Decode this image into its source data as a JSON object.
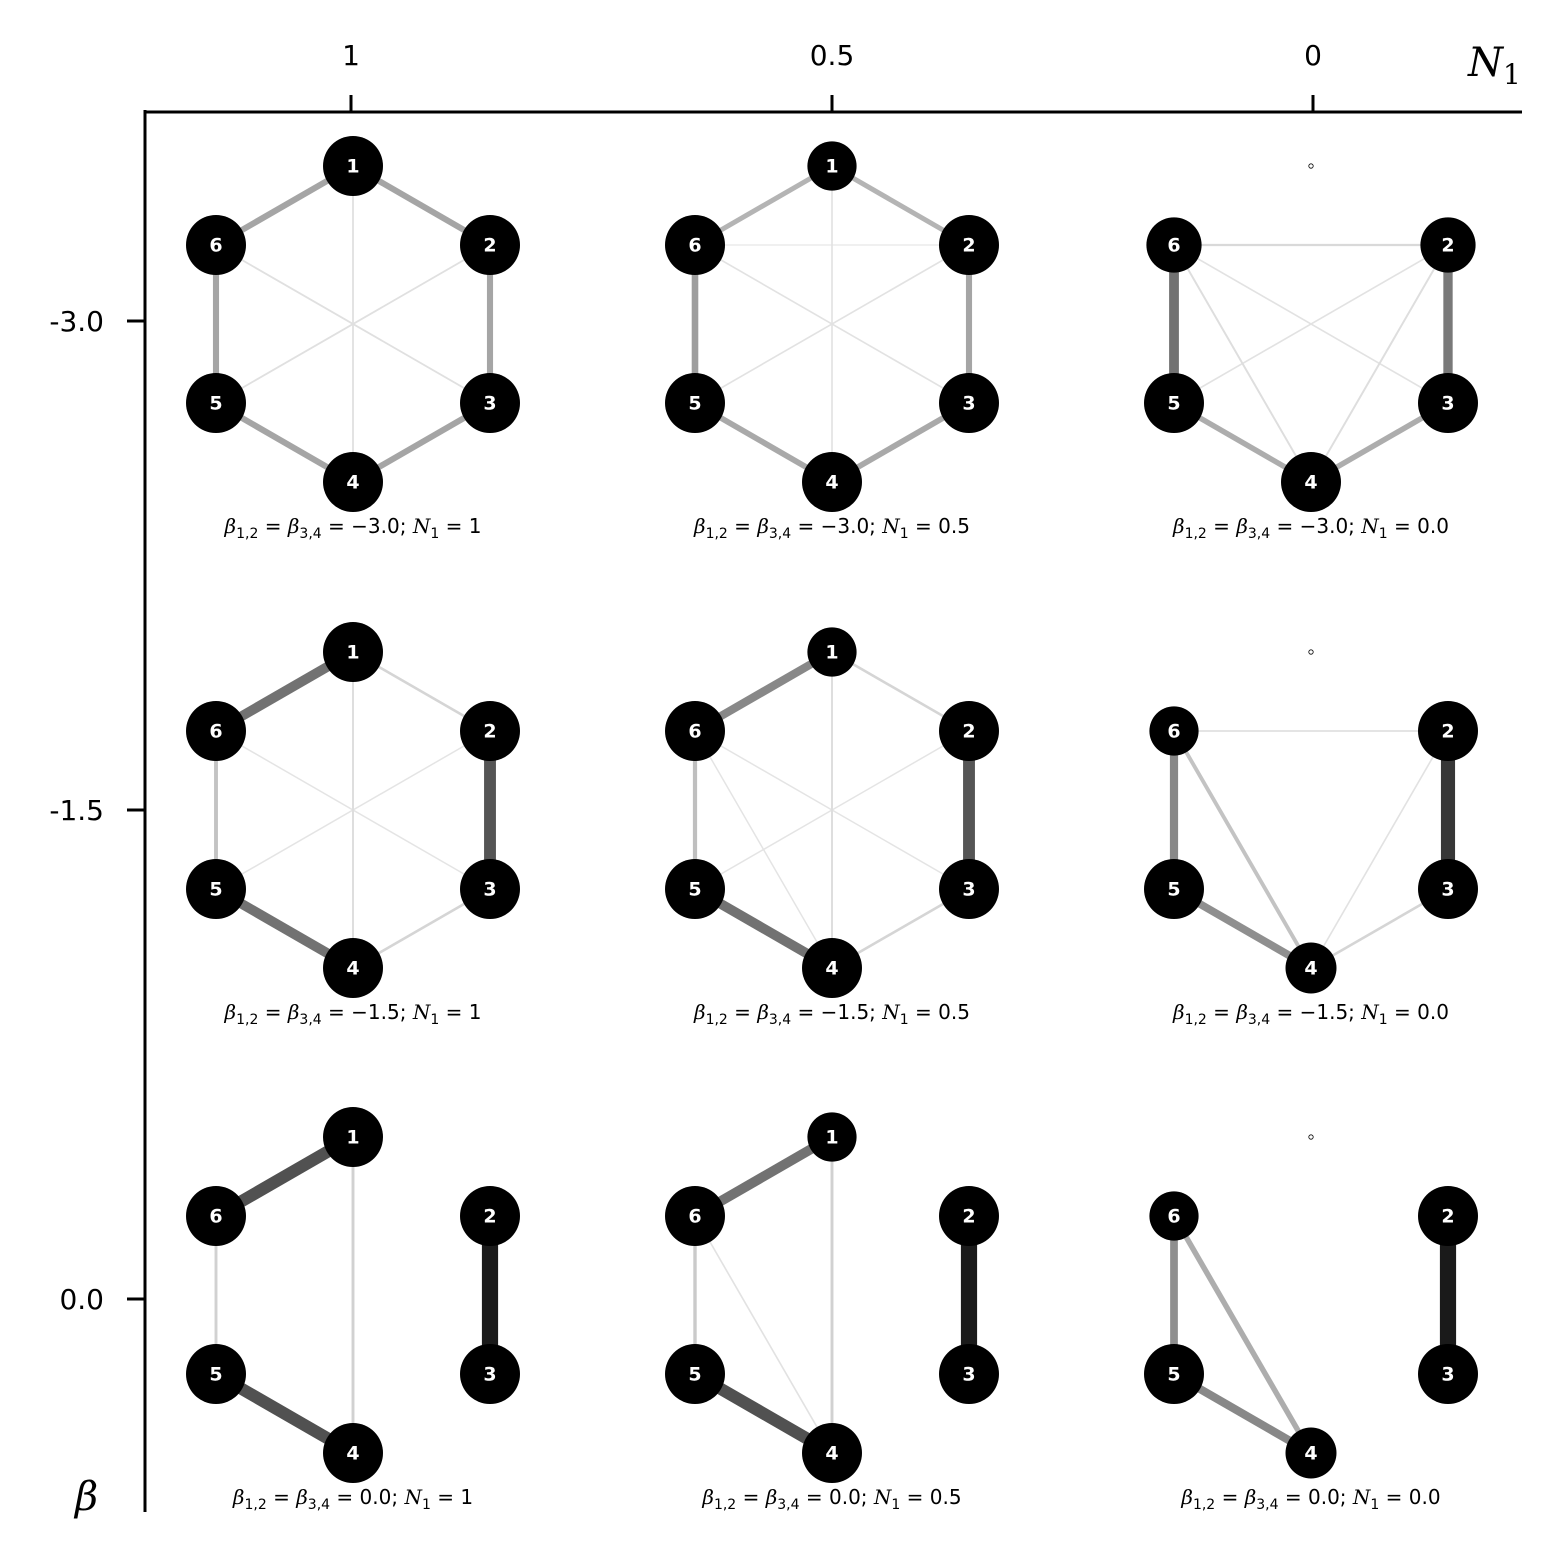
{
  "axes": {
    "x_name": "N",
    "x_name_sub": "1",
    "y_name": "β",
    "x_ticks": [
      "1",
      "0.5",
      "0"
    ],
    "y_ticks": [
      "-3.0",
      "-1.5",
      "0.0"
    ]
  },
  "node_labels": [
    "1",
    "2",
    "3",
    "4",
    "5",
    "6"
  ],
  "panels": [
    {
      "caption": "β1,2 = β3,4 = −3.0; N1 = 1",
      "cap_beta": "−3.0",
      "cap_n": "1",
      "hide_node1": false,
      "sizes": [
        1.0,
        1.0,
        1.0,
        1.0,
        1.0,
        1.0
      ],
      "edges": [
        {
          "a": 1,
          "b": 2,
          "w": 0.32
        },
        {
          "a": 2,
          "b": 3,
          "w": 0.32
        },
        {
          "a": 3,
          "b": 4,
          "w": 0.32
        },
        {
          "a": 4,
          "b": 5,
          "w": 0.32
        },
        {
          "a": 5,
          "b": 6,
          "w": 0.32
        },
        {
          "a": 6,
          "b": 1,
          "w": 0.32
        },
        {
          "a": 1,
          "b": 4,
          "w": 0.05
        },
        {
          "a": 2,
          "b": 5,
          "w": 0.05
        },
        {
          "a": 3,
          "b": 6,
          "w": 0.05
        }
      ]
    },
    {
      "caption": "β1,2 = β3,4 = −3.0; N1 = 0.5",
      "cap_beta": "−3.0",
      "cap_n": "0.5",
      "hide_node1": false,
      "sizes": [
        0.82,
        1.0,
        1.0,
        1.0,
        1.0,
        1.0
      ],
      "edges": [
        {
          "a": 1,
          "b": 2,
          "w": 0.25
        },
        {
          "a": 6,
          "b": 1,
          "w": 0.25
        },
        {
          "a": 2,
          "b": 3,
          "w": 0.32
        },
        {
          "a": 5,
          "b": 6,
          "w": 0.35
        },
        {
          "a": 3,
          "b": 4,
          "w": 0.3
        },
        {
          "a": 4,
          "b": 5,
          "w": 0.3
        },
        {
          "a": 1,
          "b": 4,
          "w": 0.04
        },
        {
          "a": 2,
          "b": 5,
          "w": 0.04
        },
        {
          "a": 3,
          "b": 6,
          "w": 0.04
        },
        {
          "a": 6,
          "b": 2,
          "w": 0.02
        }
      ]
    },
    {
      "caption": "β1,2 = β3,4 = −3.0; N1 = 0.0",
      "cap_beta": "−3.0",
      "cap_n": "0.0",
      "hide_node1": true,
      "sizes": [
        0,
        0.92,
        1.0,
        1.0,
        1.0,
        0.92
      ],
      "edges": [
        {
          "a": 5,
          "b": 6,
          "w": 0.55
        },
        {
          "a": 2,
          "b": 3,
          "w": 0.52
        },
        {
          "a": 3,
          "b": 4,
          "w": 0.28
        },
        {
          "a": 4,
          "b": 5,
          "w": 0.28
        },
        {
          "a": 6,
          "b": 2,
          "w": 0.08
        },
        {
          "a": 6,
          "b": 4,
          "w": 0.06
        },
        {
          "a": 2,
          "b": 4,
          "w": 0.06
        },
        {
          "a": 2,
          "b": 5,
          "w": 0.04
        },
        {
          "a": 3,
          "b": 6,
          "w": 0.04
        }
      ]
    },
    {
      "caption": "β1,2 = β3,4 = −1.5; N1 = 1",
      "cap_beta": "−1.5",
      "cap_n": "1",
      "hide_node1": false,
      "sizes": [
        1.0,
        1.0,
        1.0,
        1.0,
        1.0,
        1.0
      ],
      "edges": [
        {
          "a": 6,
          "b": 1,
          "w": 0.55
        },
        {
          "a": 2,
          "b": 3,
          "w": 0.68
        },
        {
          "a": 4,
          "b": 5,
          "w": 0.55
        },
        {
          "a": 1,
          "b": 2,
          "w": 0.1
        },
        {
          "a": 3,
          "b": 4,
          "w": 0.1
        },
        {
          "a": 5,
          "b": 6,
          "w": 0.18
        },
        {
          "a": 1,
          "b": 4,
          "w": 0.06
        },
        {
          "a": 2,
          "b": 5,
          "w": 0.03
        },
        {
          "a": 3,
          "b": 6,
          "w": 0.03
        }
      ]
    },
    {
      "caption": "β1,2 = β3,4 = −1.5; N1 = 0.5",
      "cap_beta": "−1.5",
      "cap_n": "0.5",
      "hide_node1": false,
      "sizes": [
        0.82,
        1.0,
        1.0,
        1.0,
        1.0,
        1.0
      ],
      "edges": [
        {
          "a": 6,
          "b": 1,
          "w": 0.45
        },
        {
          "a": 2,
          "b": 3,
          "w": 0.68
        },
        {
          "a": 4,
          "b": 5,
          "w": 0.55
        },
        {
          "a": 1,
          "b": 2,
          "w": 0.1
        },
        {
          "a": 3,
          "b": 4,
          "w": 0.1
        },
        {
          "a": 5,
          "b": 6,
          "w": 0.2
        },
        {
          "a": 1,
          "b": 4,
          "w": 0.06
        },
        {
          "a": 2,
          "b": 5,
          "w": 0.03
        },
        {
          "a": 3,
          "b": 6,
          "w": 0.03
        },
        {
          "a": 6,
          "b": 4,
          "w": 0.03
        }
      ]
    },
    {
      "caption": "β1,2 = β3,4 = −1.5; N1 = 0.0",
      "cap_beta": "−1.5",
      "cap_n": "0.0",
      "hide_node1": true,
      "sizes": [
        0,
        1.0,
        1.0,
        0.85,
        1.0,
        0.82
      ],
      "edges": [
        {
          "a": 2,
          "b": 3,
          "w": 0.82
        },
        {
          "a": 5,
          "b": 6,
          "w": 0.45
        },
        {
          "a": 4,
          "b": 5,
          "w": 0.42
        },
        {
          "a": 6,
          "b": 4,
          "w": 0.18
        },
        {
          "a": 3,
          "b": 4,
          "w": 0.1
        },
        {
          "a": 6,
          "b": 2,
          "w": 0.05
        },
        {
          "a": 2,
          "b": 4,
          "w": 0.04
        }
      ]
    },
    {
      "caption": "β1,2 = β3,4 = 0.0; N1 = 1",
      "cap_beta": "0.0",
      "cap_n": "1",
      "hide_node1": false,
      "sizes": [
        1.0,
        1.0,
        1.0,
        1.0,
        1.0,
        1.0
      ],
      "edges": [
        {
          "a": 6,
          "b": 1,
          "w": 0.7
        },
        {
          "a": 2,
          "b": 3,
          "w": 0.95
        },
        {
          "a": 4,
          "b": 5,
          "w": 0.7
        },
        {
          "a": 5,
          "b": 6,
          "w": 0.12
        },
        {
          "a": 1,
          "b": 4,
          "w": 0.12
        }
      ]
    },
    {
      "caption": "β1,2 = β3,4 = 0.0; N1 = 0.5",
      "cap_beta": "0.0",
      "cap_n": "0.5",
      "hide_node1": false,
      "sizes": [
        0.82,
        1.0,
        1.0,
        1.0,
        1.0,
        1.0
      ],
      "edges": [
        {
          "a": 6,
          "b": 1,
          "w": 0.55
        },
        {
          "a": 2,
          "b": 3,
          "w": 0.95
        },
        {
          "a": 4,
          "b": 5,
          "w": 0.7
        },
        {
          "a": 5,
          "b": 6,
          "w": 0.15
        },
        {
          "a": 1,
          "b": 4,
          "w": 0.12
        },
        {
          "a": 6,
          "b": 4,
          "w": 0.04
        }
      ]
    },
    {
      "caption": "β1,2 = β3,4 = 0.0; N1 = 0.0",
      "cap_beta": "0.0",
      "cap_n": "0.0",
      "hide_node1": true,
      "sizes": [
        0,
        1.0,
        1.0,
        0.85,
        1.0,
        0.82
      ],
      "edges": [
        {
          "a": 2,
          "b": 3,
          "w": 0.95
        },
        {
          "a": 5,
          "b": 6,
          "w": 0.42
        },
        {
          "a": 4,
          "b": 5,
          "w": 0.45
        },
        {
          "a": 6,
          "b": 4,
          "w": 0.28
        }
      ]
    }
  ]
}
